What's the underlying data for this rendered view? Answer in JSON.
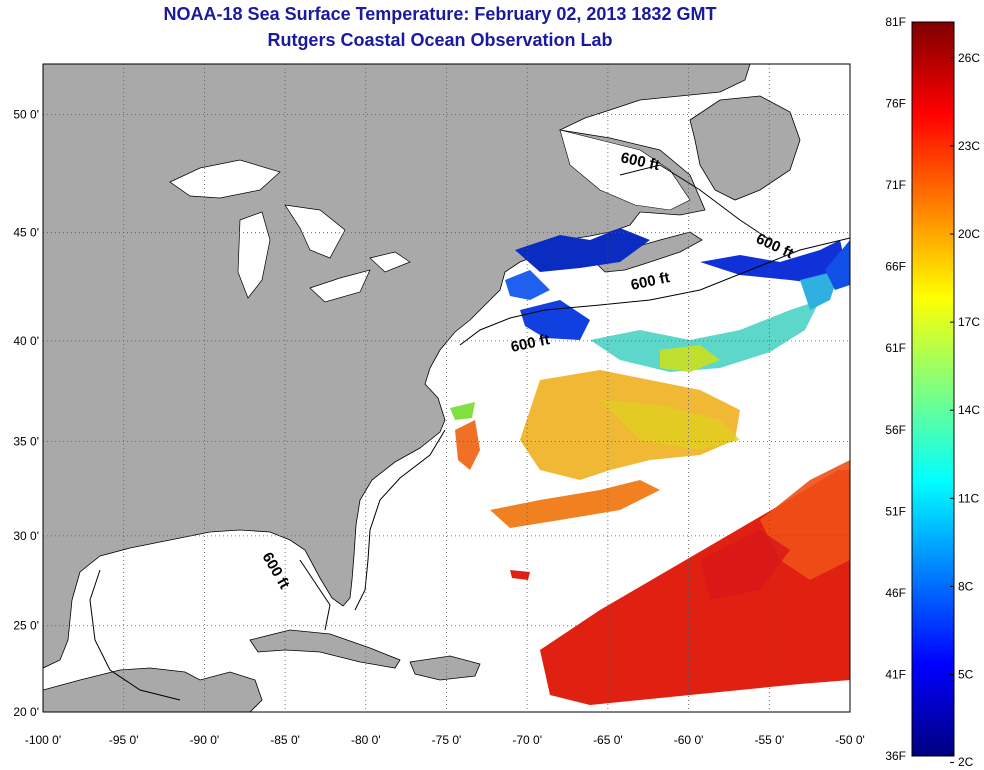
{
  "header": {
    "title": "NOAA-18 Sea Surface Temperature:  February 02, 2013 1832 GMT",
    "subtitle": "Rutgers Coastal Ocean Observation Lab"
  },
  "map": {
    "lon_range": [
      -100,
      -50
    ],
    "lat_range": [
      20,
      52
    ],
    "lon_ticks": [
      "-100 0'",
      "-95 0'",
      "-90 0'",
      "-85 0'",
      "-80 0'",
      "-75 0'",
      "-70 0'",
      "-65 0'",
      "-60 0'",
      "-55 0'",
      "-50 0'"
    ],
    "lat_ticks": [
      "20 0'",
      "25 0'",
      "30 0'",
      "35 0'",
      "40 0'",
      "45 0'",
      "50 0'"
    ],
    "land_color": "#a9a9a9",
    "ocean_color": "#ffffff",
    "grid": "dotted",
    "contour_labels": [
      "600 ft",
      "600 ft",
      "600 ft",
      "600 ft",
      "600 ft"
    ]
  },
  "colorbar": {
    "f_labels": [
      "81F",
      "76F",
      "71F",
      "66F",
      "61F",
      "56F",
      "51F",
      "46F",
      "41F",
      "36F"
    ],
    "c_labels": [
      "26C",
      "23C",
      "20C",
      "17C",
      "14C",
      "11C",
      "8C",
      "5C",
      "2C"
    ],
    "colors": [
      "#00007f",
      "#0000ff",
      "#007fff",
      "#00ffff",
      "#7fff7f",
      "#ffff00",
      "#ff7f00",
      "#ff0000",
      "#7f0000"
    ]
  }
}
